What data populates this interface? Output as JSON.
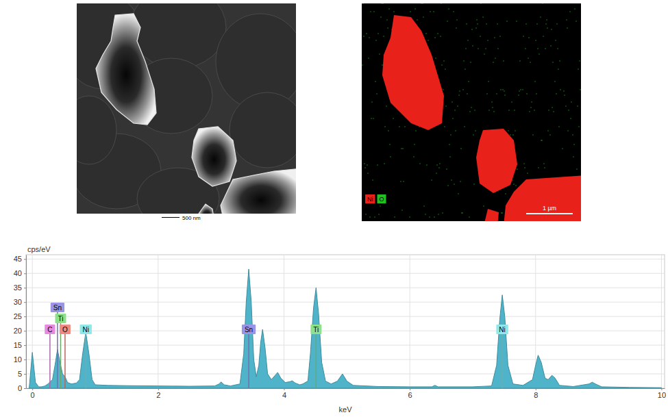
{
  "chart_data": {
    "type": "area",
    "y_label": "cps/eV",
    "x_label": "keV",
    "color": "#4fb4c9",
    "grid": true,
    "xlim": [
      -0.1,
      10.05
    ],
    "ylim": [
      0,
      46.5
    ],
    "xticks": [
      0,
      2,
      4,
      6,
      8,
      10
    ],
    "yticks": [
      0,
      5,
      10,
      15,
      20,
      25,
      30,
      35,
      40,
      45
    ],
    "x": [
      -0.05,
      0,
      0.05,
      0.1,
      0.15,
      0.2,
      0.25,
      0.28,
      0.32,
      0.36,
      0.4,
      0.44,
      0.48,
      0.52,
      0.56,
      0.62,
      0.7,
      0.75,
      0.8,
      0.85,
      0.9,
      0.95,
      1.0,
      1.2,
      1.5,
      2.0,
      2.5,
      2.9,
      2.97,
      3.0,
      3.05,
      3.15,
      3.3,
      3.36,
      3.4,
      3.44,
      3.48,
      3.52,
      3.56,
      3.6,
      3.63,
      3.66,
      3.7,
      3.74,
      3.8,
      3.86,
      3.9,
      3.95,
      4.02,
      4.1,
      4.13,
      4.18,
      4.25,
      4.3,
      4.38,
      4.42,
      4.47,
      4.51,
      4.55,
      4.6,
      4.66,
      4.75,
      4.85,
      4.93,
      5.0,
      5.1,
      5.5,
      6.0,
      6.35,
      6.4,
      6.45,
      7.0,
      7.3,
      7.38,
      7.43,
      7.47,
      7.51,
      7.56,
      7.64,
      7.8,
      7.95,
      8.0,
      8.04,
      8.09,
      8.15,
      8.2,
      8.26,
      8.31,
      8.38,
      8.6,
      8.85,
      8.9,
      8.95,
      9.05,
      9.5,
      10.0
    ],
    "values": [
      0,
      12.5,
      2,
      0.5,
      0.5,
      0.8,
      1.5,
      2.2,
      3,
      8,
      13.5,
      9,
      5,
      4,
      2,
      1.5,
      1.8,
      3,
      12,
      19.5,
      12,
      3,
      1.2,
      1,
      0.9,
      0.8,
      0.7,
      0.8,
      1.5,
      2.2,
      1.2,
      0.8,
      1.5,
      12,
      30,
      41.5,
      30,
      10,
      4,
      8,
      16,
      20.5,
      14,
      5,
      3,
      4.5,
      5.5,
      3.5,
      2,
      2.3,
      2.6,
      1.8,
      1.2,
      1.5,
      2.5,
      12,
      28,
      35,
      26,
      9,
      2.5,
      1.5,
      2.5,
      5,
      2.5,
      1,
      0.6,
      0.5,
      0.5,
      1,
      0.5,
      0.5,
      0.8,
      8,
      24,
      32.5,
      25,
      8,
      1.5,
      1,
      3,
      8,
      11.5,
      9,
      3.5,
      3,
      4.5,
      3.5,
      1,
      0.6,
      1.5,
      2.1,
      1.5,
      0.5,
      0.3,
      0.2
    ],
    "annotations": [
      {
        "label": "C",
        "x": 0.28,
        "color": "#e58ae0"
      },
      {
        "label": "O",
        "x": 0.52,
        "color": "#f08a80"
      },
      {
        "label": "Ni",
        "x": 0.85,
        "color": "#8fe8ea"
      },
      {
        "label": "Ti",
        "x": 0.45,
        "color": "#8fe08a"
      },
      {
        "label": "Sn",
        "x": 0.4,
        "color": "#9a94e6"
      },
      {
        "label": "Sn",
        "x": 3.44,
        "color": "#9a94e6"
      },
      {
        "label": "Ti",
        "x": 4.51,
        "color": "#8fe08a"
      },
      {
        "label": "Ni",
        "x": 7.47,
        "color": "#8fe8ea"
      }
    ]
  },
  "images": [
    {
      "scale_bar": "500 nm"
    },
    {
      "legend": [
        {
          "label": "Ni",
          "color": "#e8211a"
        },
        {
          "label": "O",
          "color": "#22c022"
        }
      ],
      "scale_bar": "1 µm"
    }
  ]
}
